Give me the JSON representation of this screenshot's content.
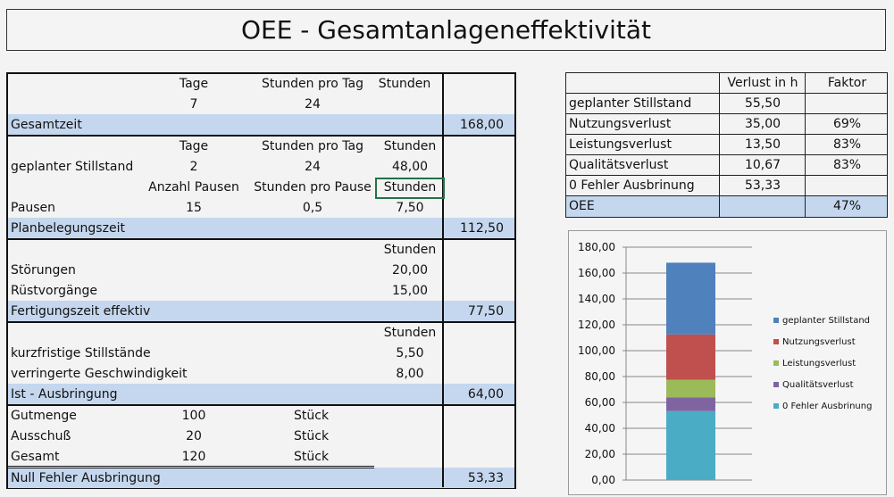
{
  "title": "OEE - Gesamtanlageneffektivität",
  "left": {
    "h1": {
      "tage": "Tage",
      "spt": "Stunden pro Tag",
      "std": "Stunden"
    },
    "r1": {
      "tage": "7",
      "spt": "24"
    },
    "gesamtzeit": {
      "label": "Gesamtzeit",
      "value": "168,00"
    },
    "h2": {
      "tage": "Tage",
      "spt": "Stunden pro Tag",
      "std": "Stunden"
    },
    "gs": {
      "label": "geplanter Stillstand",
      "tage": "2",
      "spt": "24",
      "std": "48,00"
    },
    "h3": {
      "anz": "Anzahl Pausen",
      "spp": "Stunden pro Pause",
      "std": "Stunden"
    },
    "pausen": {
      "label": "Pausen",
      "anz": "15",
      "spp": "0,5",
      "std": "7,50"
    },
    "planbelegungszeit": {
      "label": "Planbelegungszeit",
      "value": "112,50"
    },
    "h4": {
      "std": "Stunden"
    },
    "stoerungen": {
      "label": "Störungen",
      "std": "20,00"
    },
    "ruest": {
      "label": "Rüstvorgänge",
      "std": "15,00"
    },
    "fertigungszeit": {
      "label": "Fertigungszeit effektiv",
      "value": "77,50"
    },
    "h5": {
      "std": "Stunden"
    },
    "kurz": {
      "label": "kurzfristige Stillstände",
      "std": "5,50"
    },
    "verr": {
      "label": "verringerte Geschwindigkeit",
      "std": "8,00"
    },
    "ist": {
      "label": "Ist - Ausbringung",
      "value": "64,00"
    },
    "gut": {
      "label": "Gutmenge",
      "qty": "100",
      "unit": "Stück"
    },
    "aus": {
      "label": "Ausschuß",
      "qty": "20",
      "unit": "Stück"
    },
    "ges": {
      "label": "Gesamt",
      "qty": "120",
      "unit": "Stück"
    },
    "null": {
      "label": "Null Fehler Ausbringung",
      "value": "53,33"
    }
  },
  "right": {
    "headers": [
      "",
      "Verlust in h",
      "Faktor"
    ],
    "rows": [
      [
        "geplanter Stillstand",
        "55,50",
        ""
      ],
      [
        "Nutzungsverlust",
        "35,00",
        "69%"
      ],
      [
        "Leistungsverlust",
        "13,50",
        "83%"
      ],
      [
        "Qualitätsverlust",
        "10,67",
        "83%"
      ],
      [
        "0 Fehler Ausbrinung",
        "53,33",
        ""
      ],
      [
        "OEE",
        "",
        "47%"
      ]
    ]
  },
  "chart_data": {
    "type": "bar",
    "stacked": true,
    "ylim": [
      0,
      180
    ],
    "yticks": [
      "0,00",
      "20,00",
      "40,00",
      "60,00",
      "80,00",
      "100,00",
      "120,00",
      "140,00",
      "160,00",
      "180,00"
    ],
    "grid": true,
    "legend": "right",
    "series": [
      {
        "name": "0 Fehler Ausbrinung",
        "value": 53.33,
        "color": "#4bacc6"
      },
      {
        "name": "Qualitätsverlust",
        "value": 10.67,
        "color": "#8064a2"
      },
      {
        "name": "Leistungsverlust",
        "value": 13.5,
        "color": "#9bbb59"
      },
      {
        "name": "Nutzungsverlust",
        "value": 35.0,
        "color": "#c0504d"
      },
      {
        "name": "geplanter Stillstand",
        "value": 55.5,
        "color": "#4f81bd"
      }
    ],
    "legend_order": [
      "geplanter Stillstand",
      "Nutzungsverlust",
      "Leistungsverlust",
      "Qualitätsverlust",
      "0 Fehler Ausbrinung"
    ]
  }
}
